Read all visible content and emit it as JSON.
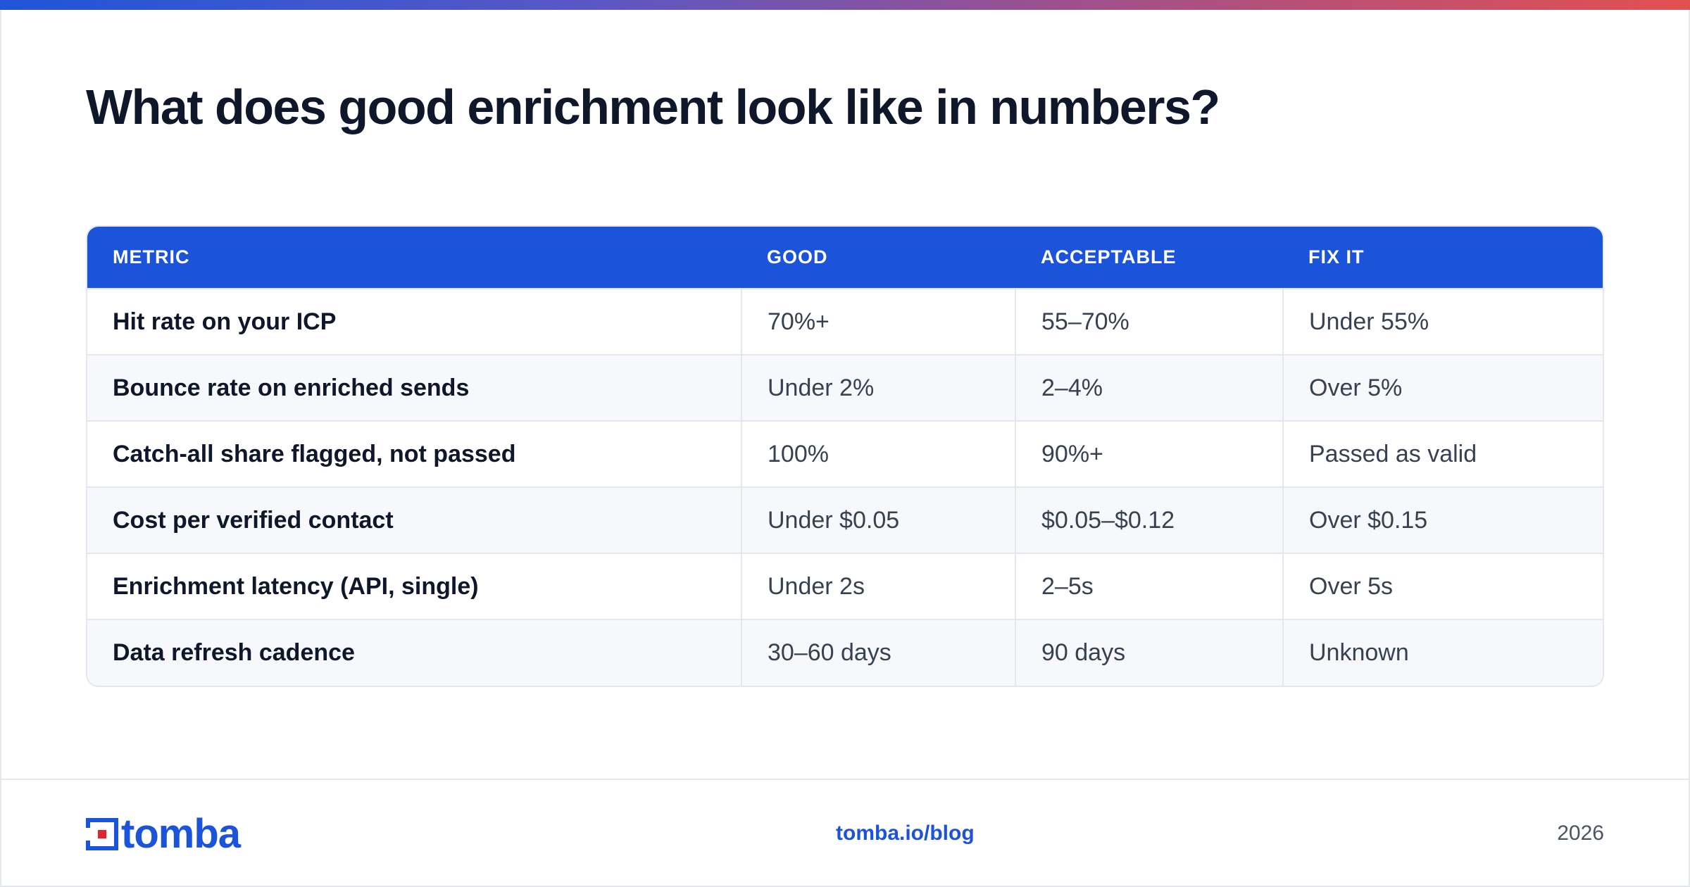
{
  "colors": {
    "accent": "#1b53da",
    "title": "#0f172a",
    "border": "#e4e7ec",
    "logo_red": "#e0262b"
  },
  "title": "What does good enrichment look like in numbers?",
  "table": {
    "headers": [
      "METRIC",
      "GOOD",
      "ACCEPTABLE",
      "FIX IT"
    ],
    "rows": [
      [
        "Hit rate on your ICP",
        "70%+",
        "55–70%",
        "Under 55%"
      ],
      [
        "Bounce rate on enriched sends",
        "Under 2%",
        "2–4%",
        "Over 5%"
      ],
      [
        "Catch-all share flagged, not passed",
        "100%",
        "90%+",
        "Passed as valid"
      ],
      [
        "Cost per verified contact",
        "Under $0.05",
        "$0.05–$0.12",
        "Over $0.15"
      ],
      [
        "Enrichment latency (API, single)",
        "Under 2s",
        "2–5s",
        "Over 5s"
      ],
      [
        "Data refresh cadence",
        "30–60 days",
        "90 days",
        "Unknown"
      ]
    ]
  },
  "footer": {
    "logo_text": "tomba",
    "link": "tomba.io/blog",
    "year": "2026"
  }
}
